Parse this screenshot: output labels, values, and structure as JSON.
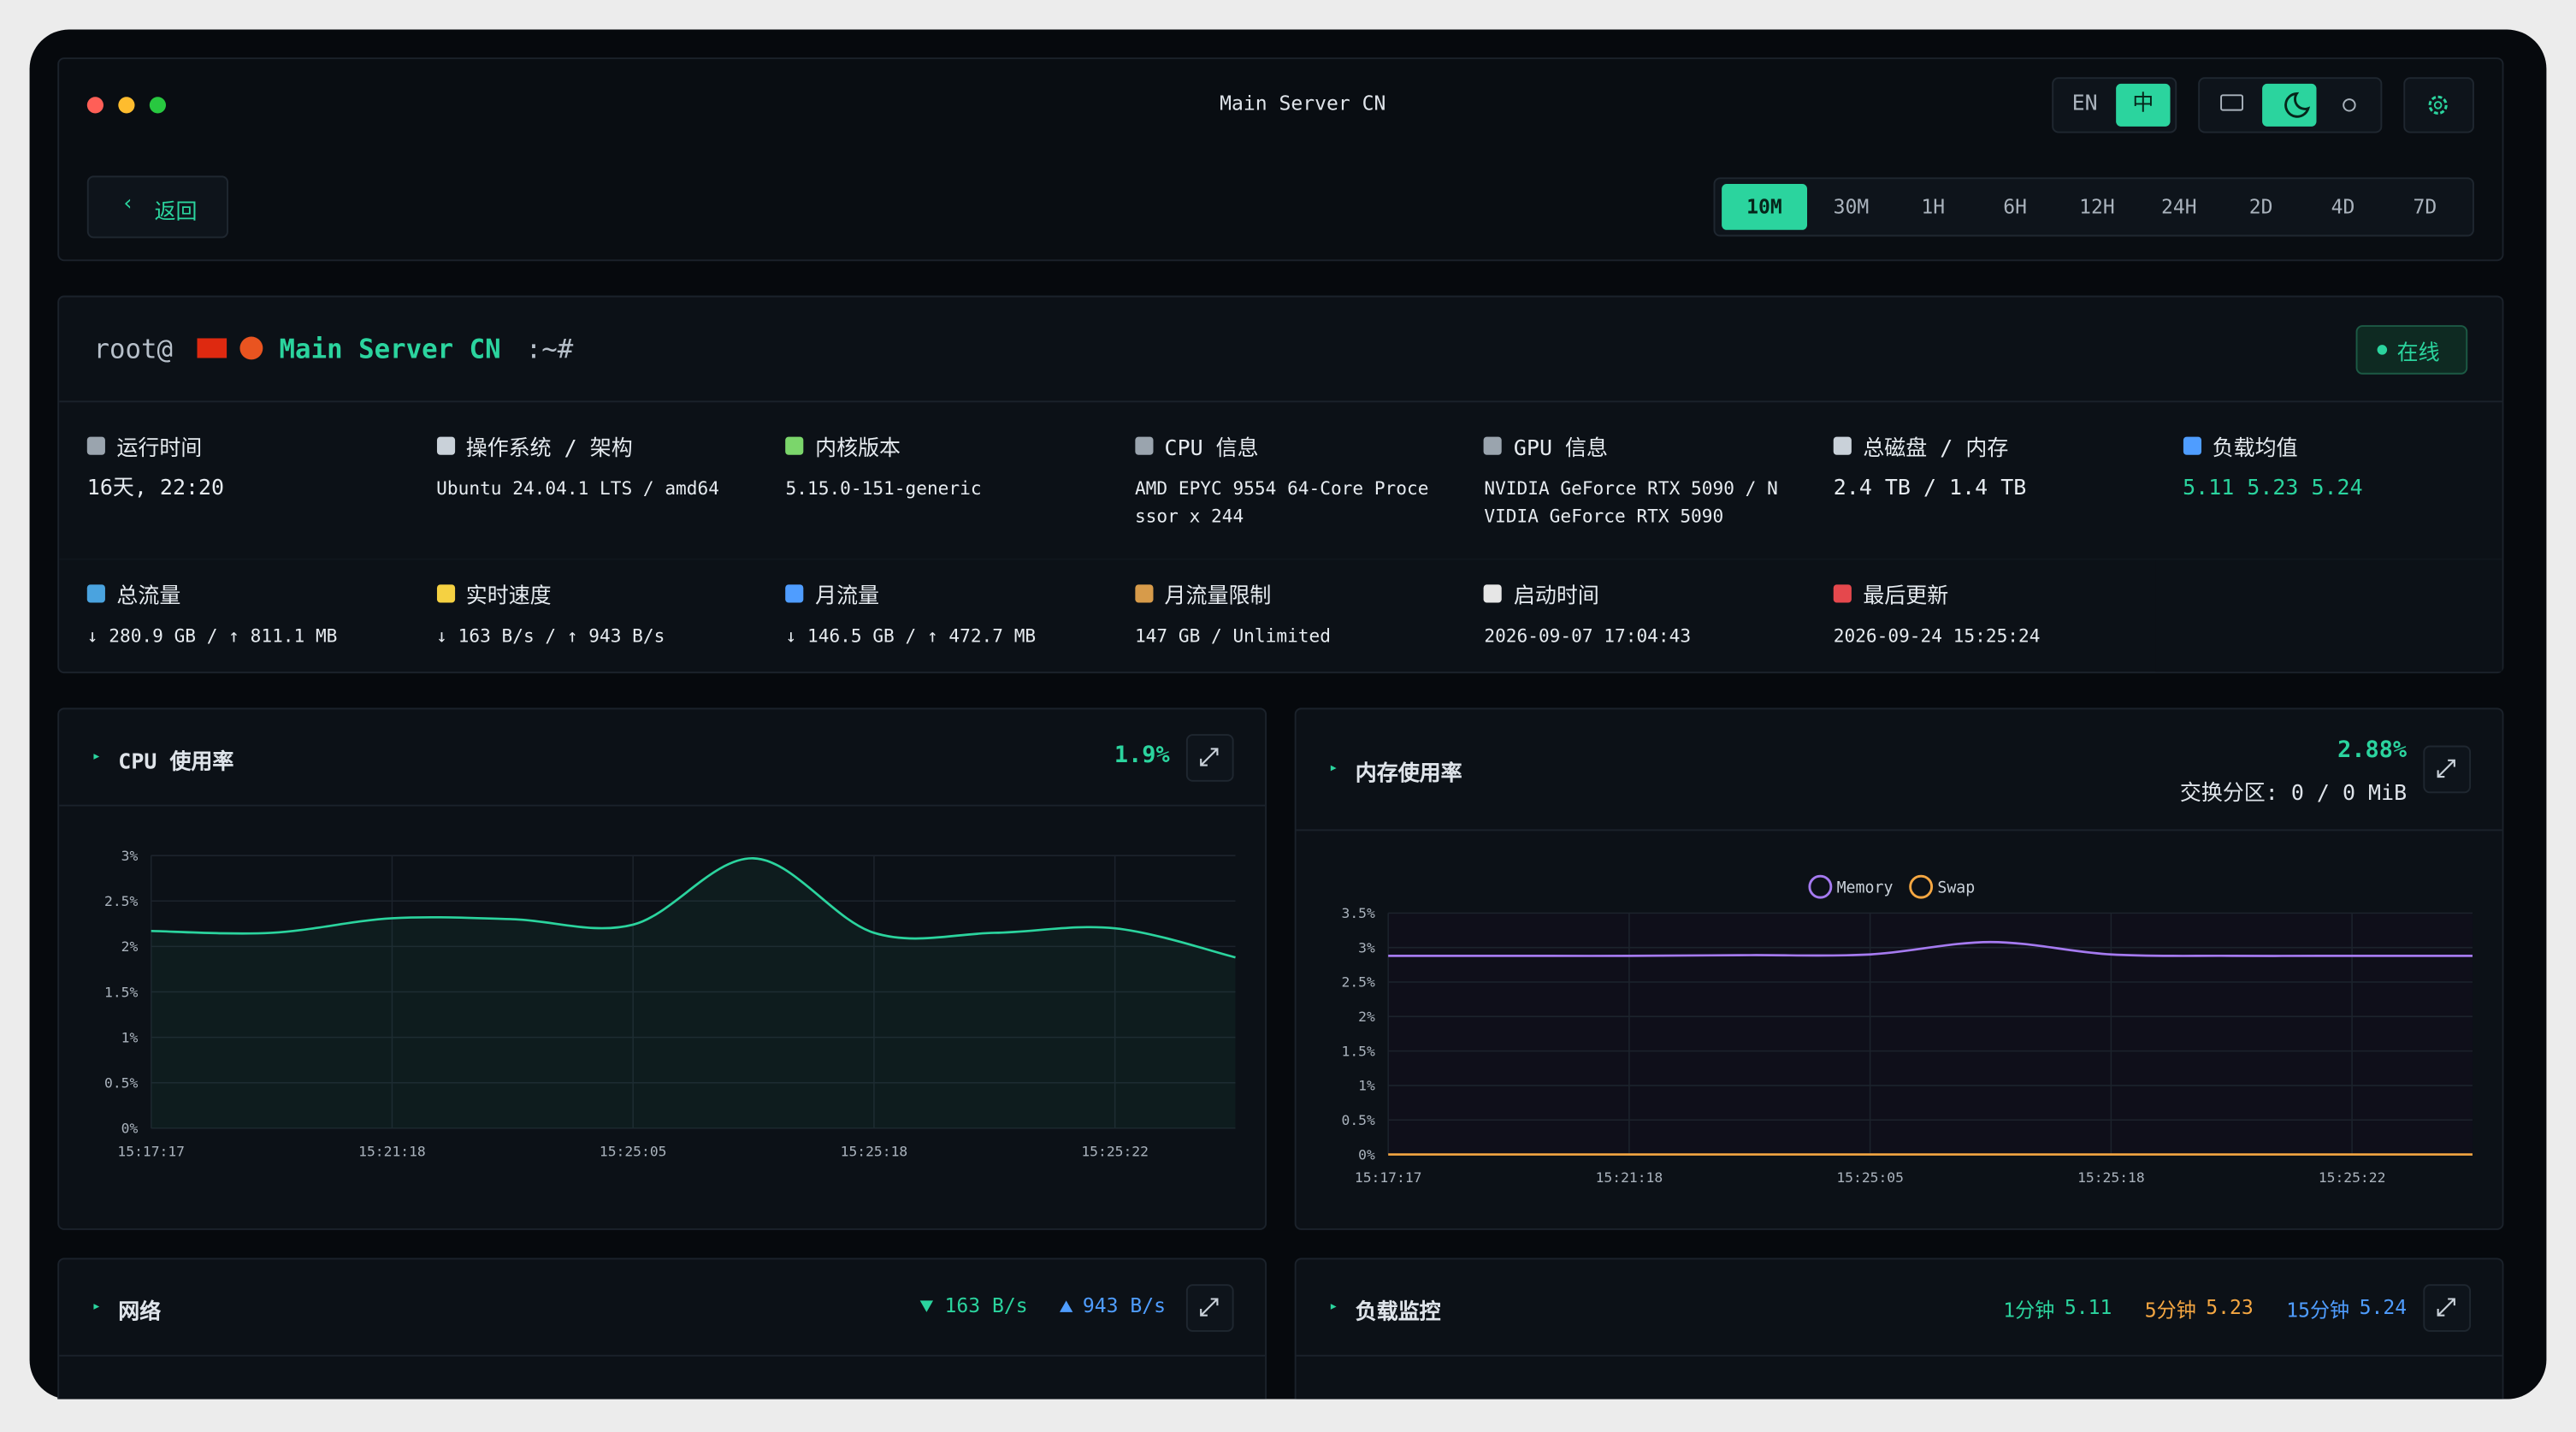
{
  "window": {
    "title": "Main Server CN"
  },
  "lang": [
    "EN",
    "中"
  ],
  "back": "返回",
  "ranges": [
    "10M",
    "30M",
    "1H",
    "6H",
    "12H",
    "24H",
    "2D",
    "4D",
    "7D"
  ],
  "server": {
    "prompt_user": "root@",
    "name": "Main Server CN",
    "prompt_suffix": ":~#",
    "status": "在线"
  },
  "info": [
    {
      "label": "运行时间",
      "value": "16天, 22:20"
    },
    {
      "label": "操作系统 / 架构",
      "value": "Ubuntu 24.04.1 LTS / amd64"
    },
    {
      "label": "内核版本",
      "value": "5.15.0-151-generic"
    },
    {
      "label": "CPU 信息",
      "value": "AMD EPYC 9554 64-Core Processor x 244"
    },
    {
      "label": "GPU 信息",
      "value": "NVIDIA GeForce RTX 5090 / NVIDIA GeForce RTX 5090"
    },
    {
      "label": "总磁盘 / 内存",
      "value": "2.4 TB / 1.4 TB"
    },
    {
      "label": "负载均值",
      "value": "5.11 5.23 5.24"
    },
    {
      "label": "总流量",
      "value": "↓ 280.9 GB / ↑ 811.1 MB"
    },
    {
      "label": "实时速度",
      "value": "↓ 163 B/s / ↑ 943 B/s"
    },
    {
      "label": "月流量",
      "value": "↓ 146.5 GB / ↑ 472.7 MB"
    },
    {
      "label": "月流量限制",
      "value": "147 GB / Unlimited"
    },
    {
      "label": "启动时间",
      "value": "2026-09-07 17:04:43"
    },
    {
      "label": "最后更新",
      "value": "2026-09-24 15:25:24"
    }
  ],
  "chart_data": [
    {
      "type": "line",
      "title": "CPU 使用率",
      "current": "1.9%",
      "categories": [
        "15:17:17",
        null,
        "15:21:18",
        null,
        "15:25:05",
        null,
        "15:25:18",
        null,
        "15:25:22",
        null
      ],
      "series": [
        {
          "name": "CPU",
          "color": "#2bd49e",
          "values": [
            2.17,
            2.15,
            2.31,
            2.3,
            2.24,
            2.97,
            2.15,
            2.15,
            2.2,
            1.88
          ]
        }
      ],
      "ylim": [
        0,
        3
      ],
      "yticks": [
        {
          "value": 0,
          "label": "0%"
        },
        {
          "value": 0.5,
          "label": "0.5%"
        },
        {
          "value": 1,
          "label": "1%"
        },
        {
          "value": 1.5,
          "label": "1.5%"
        },
        {
          "value": 2,
          "label": "2%"
        },
        {
          "value": 2.5,
          "label": "2.5%"
        },
        {
          "value": 3,
          "label": "3%"
        }
      ],
      "grid": true
    },
    {
      "type": "line",
      "title": "内存使用率",
      "current": "2.88%",
      "swap_info": "交换分区: 0 / 0 MiB",
      "categories": [
        "15:17:17",
        null,
        "15:21:18",
        null,
        "15:25:05",
        null,
        "15:25:18",
        null,
        "15:25:22",
        null
      ],
      "series": [
        {
          "name": "Memory",
          "color": "#a57af0",
          "values": [
            2.88,
            2.88,
            2.88,
            2.89,
            2.9,
            3.08,
            2.9,
            2.88,
            2.88,
            2.88
          ]
        },
        {
          "name": "Swap",
          "color": "#f5a742",
          "values": [
            0,
            0,
            0,
            0,
            0,
            0,
            0,
            0,
            0,
            0
          ]
        }
      ],
      "ylim": [
        0,
        3.5
      ],
      "yticks": [
        {
          "value": 0,
          "label": "0%"
        },
        {
          "value": 0.5,
          "label": "0.5%"
        },
        {
          "value": 1,
          "label": "1%"
        },
        {
          "value": 1.5,
          "label": "1.5%"
        },
        {
          "value": 2,
          "label": "2%"
        },
        {
          "value": 2.5,
          "label": "2.5%"
        },
        {
          "value": 3,
          "label": "3%"
        },
        {
          "value": 3.5,
          "label": "3.5%"
        }
      ],
      "grid": true,
      "legend": "top"
    }
  ],
  "panels": [
    {
      "title": "网络",
      "down": "163 B/s",
      "up": "943 B/s"
    },
    {
      "title": "负载监控",
      "items": [
        {
          "label": "1分钟",
          "value": "5.11",
          "color": "#2bd49e"
        },
        {
          "label": "5分钟",
          "value": "5.23",
          "color": "#f5a742"
        },
        {
          "label": "15分钟",
          "value": "5.24",
          "color": "#4f9dff"
        }
      ]
    }
  ]
}
